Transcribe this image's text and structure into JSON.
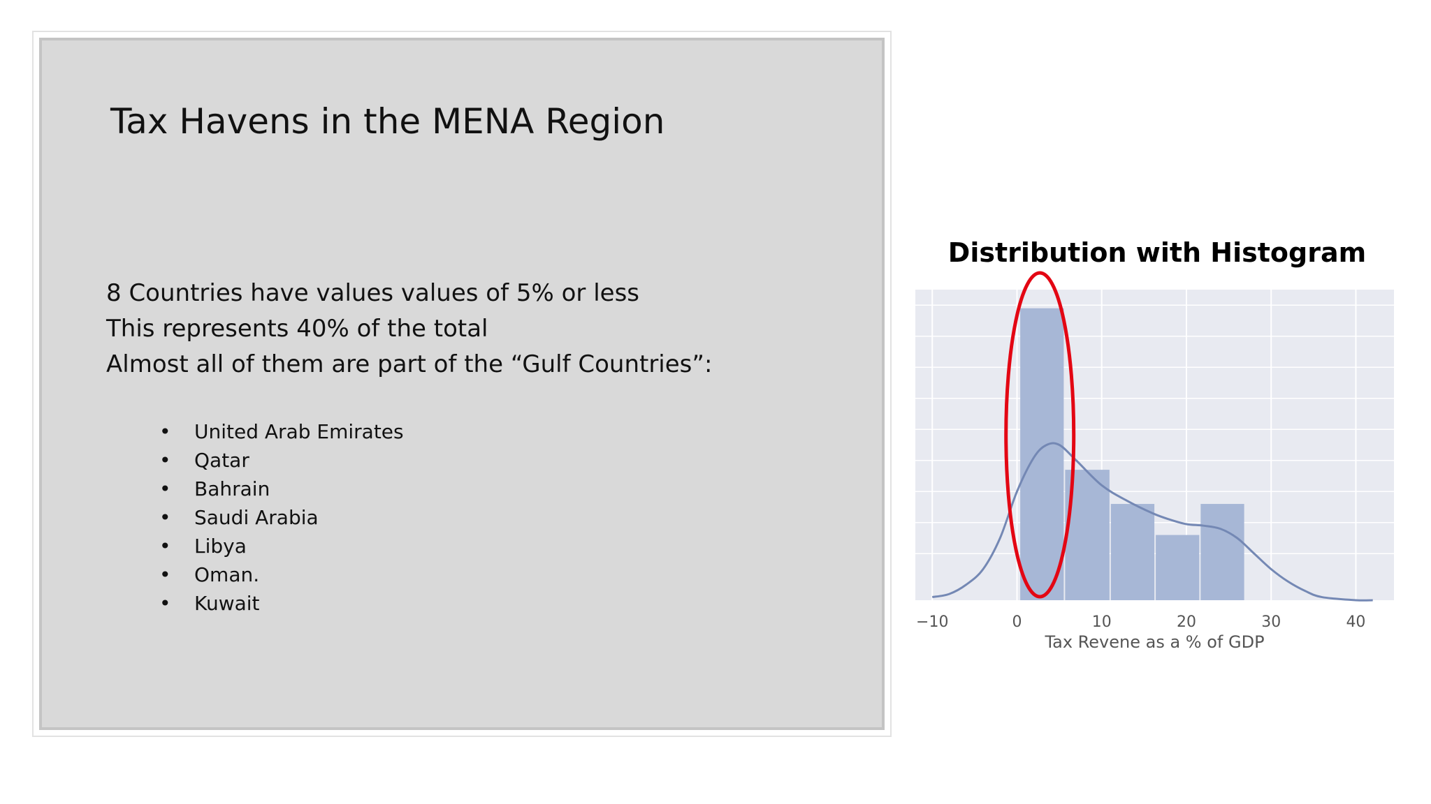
{
  "slide": {
    "title": "Tax Havens in the MENA Region",
    "summary": [
      "8 Countries have values values of 5% or less",
      "This represents 40% of the total",
      "Almost all of them are part of the “Gulf Countries”:"
    ],
    "bullet": "•",
    "countries": [
      "United Arab Emirates",
      "Qatar",
      "Bahrain",
      "Saudi Arabia",
      "Libya",
      "Oman.",
      "Kuwait"
    ]
  },
  "chart_data": {
    "type": "bar",
    "title": "Distribution with Histogram",
    "xlabel": "Tax Revene as a % of GDP",
    "ylabel": "",
    "xlim": [
      -12,
      44.5
    ],
    "ylim": [
      0,
      1
    ],
    "xticks": [
      -10,
      0,
      10,
      20,
      30,
      40
    ],
    "grid": true,
    "bins": [
      {
        "x0": 0.3,
        "x1": 5.6,
        "value": 0.94
      },
      {
        "x0": 5.6,
        "x1": 11.0,
        "value": 0.42
      },
      {
        "x0": 11.0,
        "x1": 16.3,
        "value": 0.31
      },
      {
        "x0": 16.3,
        "x1": 21.6,
        "value": 0.21
      },
      {
        "x0": 21.6,
        "x1": 26.9,
        "value": 0.31
      }
    ],
    "kde": [
      [
        -14,
        0.0
      ],
      [
        -10,
        0.01
      ],
      [
        -8,
        0.02
      ],
      [
        -6,
        0.05
      ],
      [
        -4,
        0.1
      ],
      [
        -2,
        0.2
      ],
      [
        0,
        0.35
      ],
      [
        2,
        0.46
      ],
      [
        3.5,
        0.5
      ],
      [
        5,
        0.5
      ],
      [
        7,
        0.45
      ],
      [
        10,
        0.37
      ],
      [
        13,
        0.32
      ],
      [
        16,
        0.28
      ],
      [
        18,
        0.26
      ],
      [
        20,
        0.245
      ],
      [
        22,
        0.24
      ],
      [
        24,
        0.23
      ],
      [
        26,
        0.2
      ],
      [
        28,
        0.15
      ],
      [
        30,
        0.1
      ],
      [
        32,
        0.06
      ],
      [
        34,
        0.03
      ],
      [
        36,
        0.01
      ],
      [
        40,
        0.0
      ],
      [
        42,
        0.0
      ]
    ],
    "highlight": {
      "x0": -1.3,
      "x1": 6.7,
      "label": "red-ellipse"
    },
    "colors": {
      "background": "#e8eaf1",
      "grid": "#ffffff",
      "bar": "#a7b7d6",
      "kde": "#7488b4",
      "highlight": "#e30613",
      "tick_text": "#555555"
    }
  }
}
